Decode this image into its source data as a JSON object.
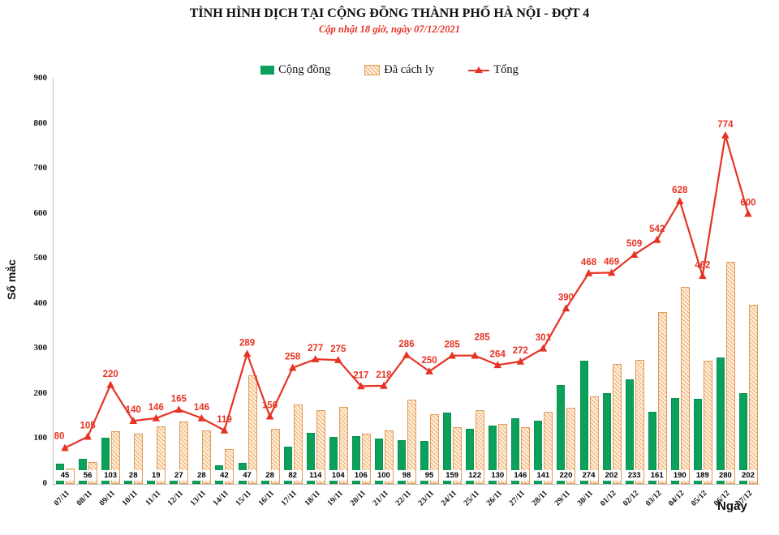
{
  "header": {
    "title": "TÌNH HÌNH DỊCH TẠI CỘNG ĐỒNG THÀNH PHỐ HÀ NỘI - ĐỢT 4",
    "subtitle": "Cập nhật 18 giờ, ngày 07/12/2021"
  },
  "legend": {
    "items": [
      {
        "label": "Cộng đồng",
        "swatch": "solid-green-bar"
      },
      {
        "label": "Đã cách ly",
        "swatch": "hatched-orange-bar"
      },
      {
        "label": "Tổng",
        "swatch": "red-line-triangle-marker"
      }
    ]
  },
  "axes": {
    "y_label": "Số mắc",
    "x_label": "Ngày",
    "y_ticks": [
      0,
      100,
      200,
      300,
      400,
      500,
      600,
      700,
      800,
      900
    ]
  },
  "colors": {
    "green": "#0ba15a",
    "hatch_fill": "#fdeeda",
    "hatch_line": "#eeae72",
    "hatch_border": "#e19b58",
    "red": "#e63323",
    "axis": "#bfbfbf"
  },
  "chart_data": {
    "type": "bar",
    "subtype": "grouped bars with overlaid line",
    "title": "TÌNH HÌNH DỊCH TẠI CỘNG ĐỒNG THÀNH PHỐ HÀ NỘI - ĐỢT 4",
    "xlabel": "Ngày",
    "ylabel": "Số mắc",
    "ylim": [
      0,
      900
    ],
    "grid": false,
    "legend_position": "top",
    "categories": [
      "07/11",
      "08/11",
      "09/11",
      "10/11",
      "11/11",
      "12/11",
      "13/11",
      "14/11",
      "15/11",
      "16/11",
      "17/11",
      "18/11",
      "19/11",
      "20/11",
      "21/11",
      "22/11",
      "23/11",
      "24/11",
      "25/11",
      "26/11",
      "27/11",
      "28/11",
      "29/11",
      "30/11",
      "01/12",
      "02/12",
      "03/12",
      "04/12",
      "05/12",
      "06/12",
      "07/12"
    ],
    "series": [
      {
        "name": "Cộng đồng",
        "type": "bar",
        "color_key": "green",
        "values": [
          45,
          56,
          103,
          28,
          19,
          27,
          28,
          42,
          47,
          28,
          82,
          114,
          104,
          106,
          100,
          98,
          95,
          159,
          122,
          130,
          146,
          141,
          220,
          274,
          202,
          233,
          161,
          190,
          189,
          280,
          202
        ]
      },
      {
        "name": "Đã cách ly",
        "type": "bar",
        "color_key": "hatch_fill",
        "values": [
          35,
          49,
          117,
          112,
          127,
          138,
          118,
          77,
          242,
          122,
          176,
          163,
          171,
          111,
          118,
          188,
          155,
          126,
          163,
          134,
          126,
          160,
          170,
          194,
          267,
          276,
          381,
          438,
          273,
          494,
          398
        ]
      },
      {
        "name": "Tổng",
        "type": "line",
        "color_key": "red",
        "values": [
          80,
          105,
          220,
          140,
          146,
          165,
          146,
          119,
          289,
          150,
          258,
          277,
          275,
          217,
          218,
          286,
          250,
          285,
          285,
          264,
          272,
          301,
          390,
          468,
          469,
          509,
          542,
          628,
          462,
          774,
          600
        ]
      }
    ]
  }
}
